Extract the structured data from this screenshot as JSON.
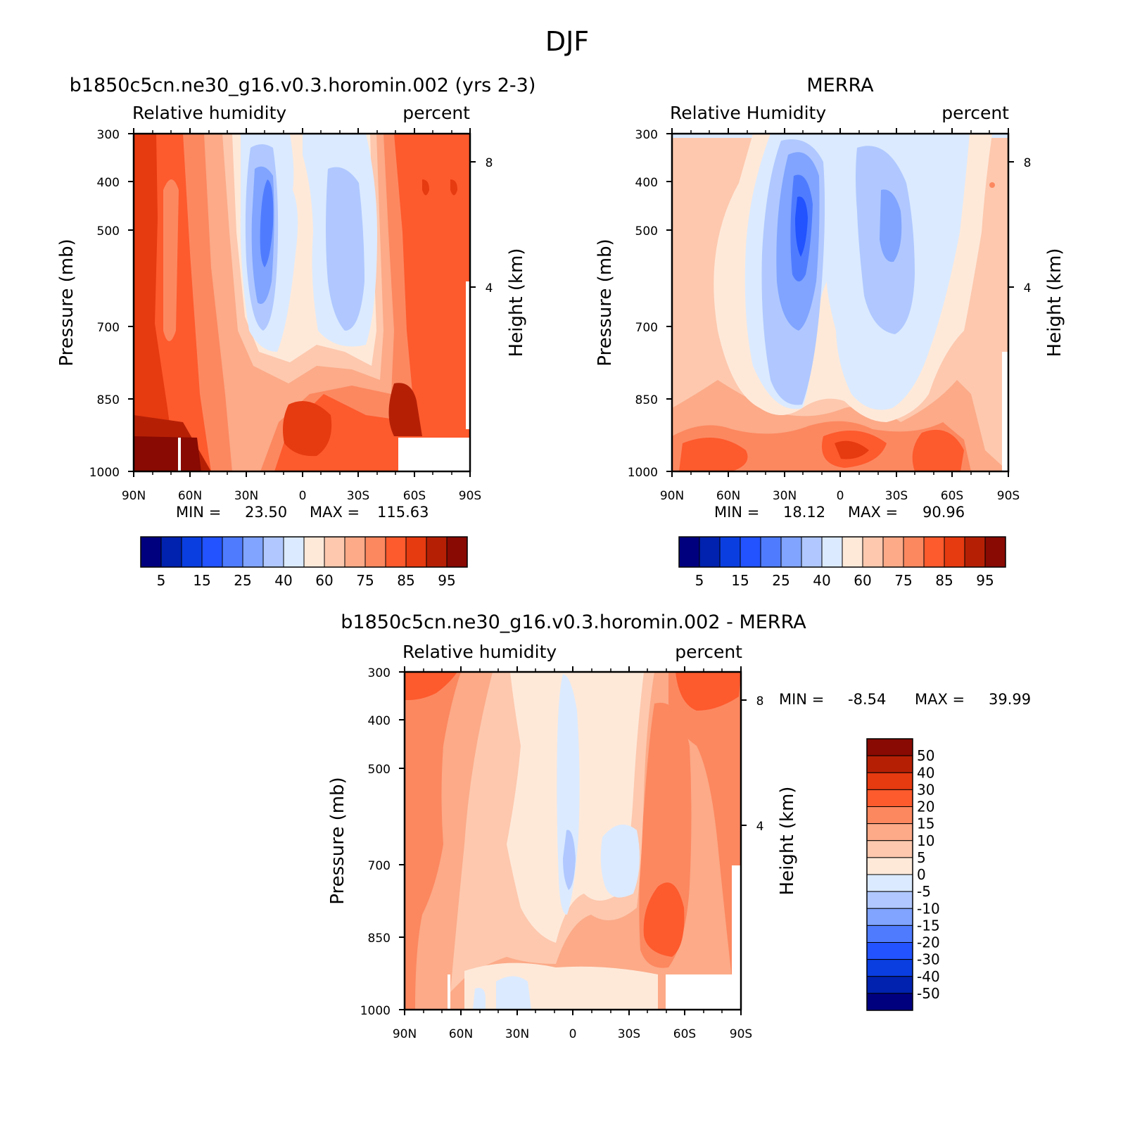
{
  "figure_title": "DJF",
  "chart_data": [
    {
      "type": "heatmap",
      "panel": "model",
      "title": "b1850c5cn.ne30_g16.v0.3.horomin.002 (yrs 2-3)",
      "left_subtitle": "Relative humidity",
      "right_subtitle": "percent",
      "ylabel": "Pressure (mb)",
      "ylabel_right": "Height (km)",
      "x_ticks": [
        "90N",
        "60N",
        "30N",
        "0",
        "30S",
        "60S",
        "90S"
      ],
      "y_ticks": [
        "300",
        "400",
        "500",
        "700",
        "850",
        "1000"
      ],
      "y_right_ticks": [
        "8",
        "4"
      ],
      "stats": {
        "min_label": "MIN =",
        "min": "23.50",
        "max_label": "MAX =",
        "max": "115.63"
      },
      "colorbar": {
        "orientation": "horizontal",
        "labels": [
          "5",
          "15",
          "25",
          "40",
          "60",
          "75",
          "85",
          "95"
        ],
        "levels": [
          5,
          10,
          15,
          20,
          25,
          30,
          40,
          50,
          60,
          70,
          75,
          80,
          85,
          90,
          95
        ]
      }
    },
    {
      "type": "heatmap",
      "panel": "obs",
      "title": "MERRA",
      "left_subtitle": "Relative Humidity",
      "right_subtitle": "percent",
      "ylabel": "Pressure (mb)",
      "ylabel_right": "Height (km)",
      "x_ticks": [
        "90N",
        "60N",
        "30N",
        "0",
        "30S",
        "60S",
        "90S"
      ],
      "y_ticks": [
        "300",
        "400",
        "500",
        "700",
        "850",
        "1000"
      ],
      "y_right_ticks": [
        "8",
        "4"
      ],
      "stats": {
        "min_label": "MIN =",
        "min": "18.12",
        "max_label": "MAX =",
        "max": "90.96"
      },
      "colorbar": {
        "orientation": "horizontal",
        "labels": [
          "5",
          "15",
          "25",
          "40",
          "60",
          "75",
          "85",
          "95"
        ],
        "levels": [
          5,
          10,
          15,
          20,
          25,
          30,
          40,
          50,
          60,
          70,
          75,
          80,
          85,
          90,
          95
        ]
      }
    },
    {
      "type": "heatmap",
      "panel": "diff",
      "title": "b1850c5cn.ne30_g16.v0.3.horomin.002 - MERRA",
      "left_subtitle": "Relative humidity",
      "right_subtitle": "percent",
      "ylabel": "Pressure (mb)",
      "ylabel_right": "Height (km)",
      "x_ticks": [
        "90N",
        "60N",
        "30N",
        "0",
        "30S",
        "60S",
        "90S"
      ],
      "y_ticks": [
        "300",
        "400",
        "500",
        "700",
        "850",
        "1000"
      ],
      "y_right_ticks": [
        "8",
        "4"
      ],
      "stats": {
        "min_label": "MIN =",
        "min": "-8.54",
        "max_label": "MAX =",
        "max": "39.99"
      },
      "colorbar": {
        "orientation": "vertical",
        "labels": [
          "50",
          "40",
          "30",
          "20",
          "15",
          "10",
          "5",
          "0",
          "-5",
          "-10",
          "-15",
          "-20",
          "-30",
          "-40",
          "-50"
        ]
      }
    }
  ],
  "colors": {
    "scale": [
      "#00007f",
      "#0022ae",
      "#0a3ee0",
      "#2253ff",
      "#4f7cff",
      "#80a4ff",
      "#b0c8ff",
      "#dbeaff",
      "#fee9d9",
      "#fdc8ae",
      "#fcaa88",
      "#fc8860",
      "#fd5a2d",
      "#e63a10",
      "#b52005",
      "#880a02"
    ]
  }
}
